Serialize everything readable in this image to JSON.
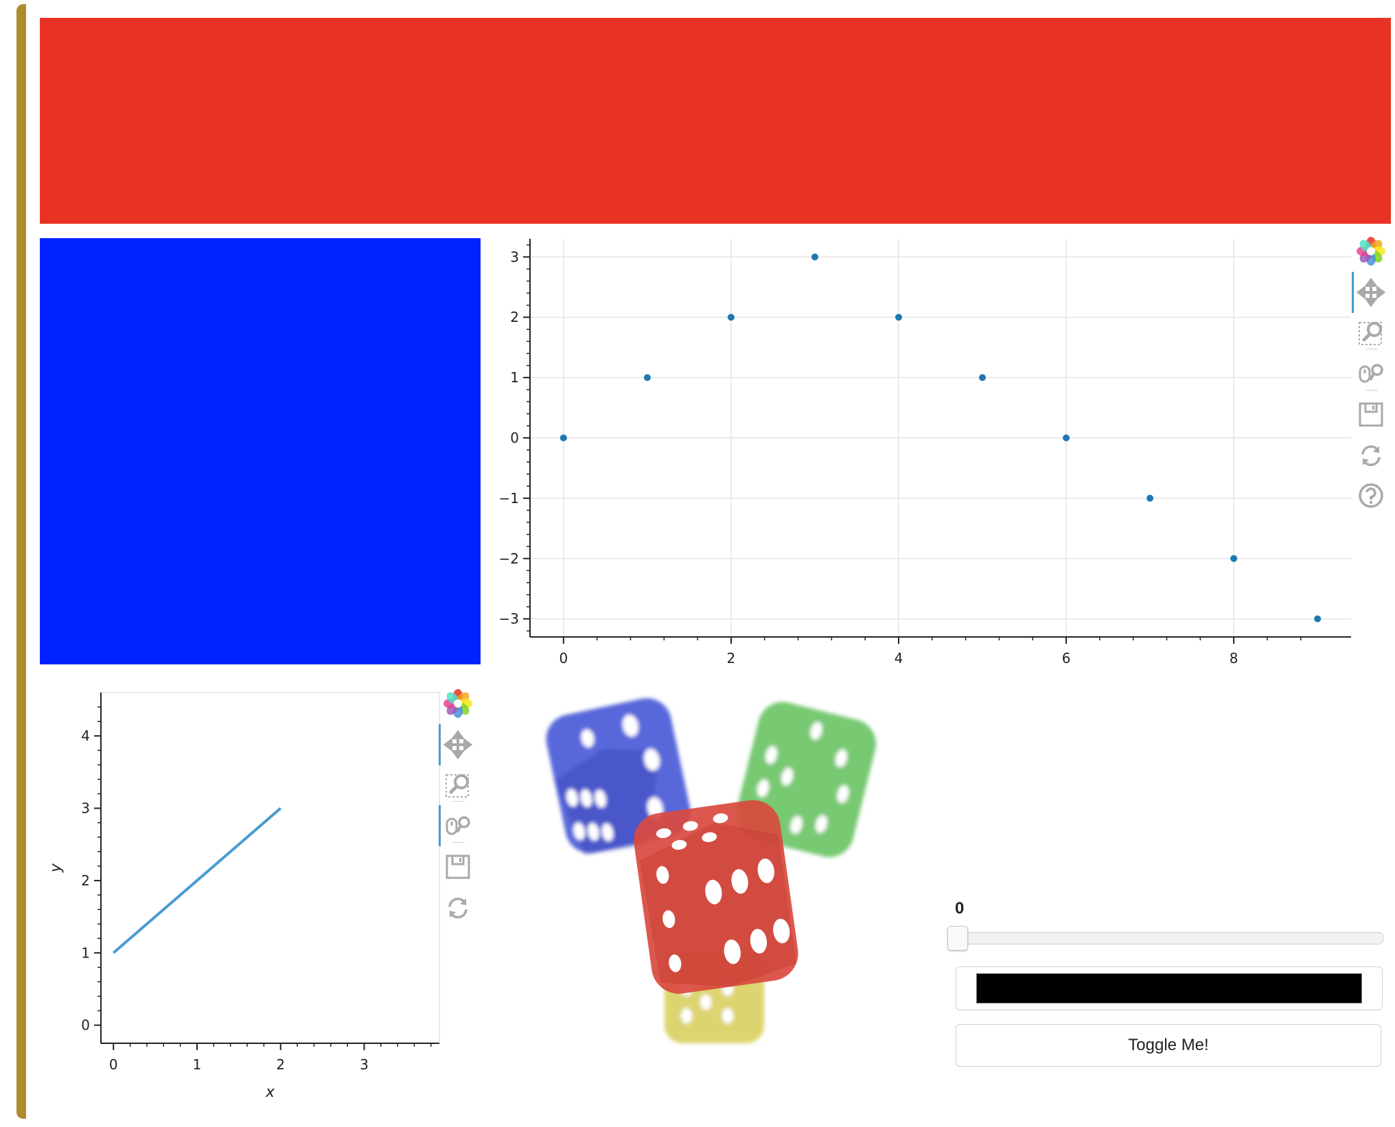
{
  "panels": {
    "top_banner_color": "#e83324",
    "left_panel_color": "#0022ff",
    "left_border_color": "#b08a2e"
  },
  "toolbar_top": {
    "tools": [
      "bokeh-logo-icon",
      "pan-icon",
      "box-zoom-icon",
      "wheel-zoom-icon",
      "save-icon",
      "reset-icon",
      "help-icon"
    ],
    "active": [
      "pan-icon"
    ]
  },
  "toolbar_bottom": {
    "tools": [
      "bokeh-logo-icon",
      "pan-icon",
      "box-zoom-icon",
      "wheel-zoom-icon",
      "save-icon",
      "reset-icon"
    ],
    "active": [
      "pan-icon",
      "wheel-zoom-icon"
    ]
  },
  "chart_data": [
    {
      "type": "scatter",
      "x": [
        0,
        1,
        2,
        3,
        4,
        5,
        6,
        7,
        8,
        9
      ],
      "y": [
        0,
        1,
        2,
        3,
        2,
        1,
        0,
        -1,
        -2,
        -3
      ],
      "xlim": [
        -0.4,
        9.4
      ],
      "ylim": [
        -3.3,
        3.3
      ],
      "xticks": [
        "0",
        "2",
        "4",
        "6",
        "8"
      ],
      "yticks": [
        "−3",
        "−2",
        "−1",
        "0",
        "1",
        "2",
        "3"
      ],
      "grid": true,
      "marker_color": "#1f77b4"
    },
    {
      "type": "line",
      "x": [
        0,
        1,
        2
      ],
      "y": [
        1,
        2,
        3
      ],
      "xlim": [
        -0.15,
        3.9
      ],
      "ylim": [
        -0.25,
        4.6
      ],
      "xticks": [
        "0",
        "1",
        "2",
        "3"
      ],
      "yticks": [
        "0",
        "1",
        "2",
        "3",
        "4"
      ],
      "xlabel": "x",
      "ylabel": "y",
      "grid": false,
      "line_color": "#4a9bd1"
    }
  ],
  "image": {
    "subject": "dice-image",
    "dice_colors": [
      "#4656d6",
      "#5fbf5a",
      "#d94a3f",
      "#d6cd55"
    ]
  },
  "slider": {
    "value": "0",
    "level": 0
  },
  "color_picker": {
    "color": "#000000"
  },
  "toggle_button": {
    "label": "Toggle Me!"
  }
}
